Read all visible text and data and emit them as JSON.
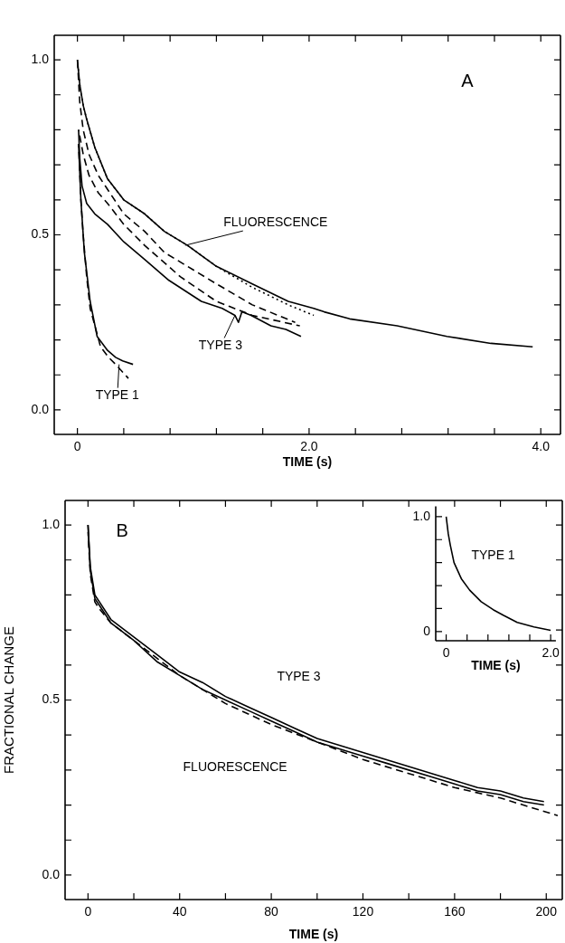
{
  "chart_data": [
    {
      "type": "line",
      "xlabel": "TIME (s)",
      "xlim": [
        -0.2,
        4.17
      ],
      "ylim": [
        -0.07,
        1.07
      ],
      "xticks": [
        {
          "value": 0,
          "label": "0"
        },
        {
          "value": 0.4,
          "label": null
        },
        {
          "value": 0.8,
          "label": null
        },
        {
          "value": 1.2,
          "label": null
        },
        {
          "value": 1.6,
          "label": null
        },
        {
          "value": 2.0,
          "label": "2.0"
        },
        {
          "value": 2.4,
          "label": null
        },
        {
          "value": 2.8,
          "label": null
        },
        {
          "value": 3.2,
          "label": null
        },
        {
          "value": 3.6,
          "label": null
        },
        {
          "value": 4.0,
          "label": "4.0"
        }
      ],
      "yticks": [
        {
          "value": 0,
          "label": "0.0"
        },
        {
          "value": 0.1,
          "label": null
        },
        {
          "value": 0.2,
          "label": null
        },
        {
          "value": 0.3,
          "label": null
        },
        {
          "value": 0.4,
          "label": null
        },
        {
          "value": 0.5,
          "label": "0.5"
        },
        {
          "value": 0.6,
          "label": null
        },
        {
          "value": 0.7,
          "label": null
        },
        {
          "value": 0.8,
          "label": null
        },
        {
          "value": 0.9,
          "label": null
        },
        {
          "value": 1.0,
          "label": "1.0"
        }
      ],
      "grid": false,
      "series": [
        {
          "color": "#000000",
          "line_style": "solid",
          "x": [
            0,
            0.02,
            0.05,
            0.08,
            0.15,
            0.26,
            0.4,
            0.58,
            0.75,
            0.95,
            1.2,
            1.51,
            1.82,
            2.04,
            2.13,
            2.35,
            2.76,
            3.19,
            3.57,
            3.93
          ],
          "values": [
            1.0,
            0.93,
            0.87,
            0.83,
            0.75,
            0.66,
            0.6,
            0.56,
            0.51,
            0.47,
            0.41,
            0.36,
            0.31,
            0.29,
            0.28,
            0.26,
            0.24,
            0.21,
            0.19,
            0.18
          ]
        },
        {
          "color": "#000000",
          "line_style": "dotted",
          "x": [
            0,
            0.02,
            0.05,
            0.08,
            0.15,
            0.26,
            0.4,
            0.58,
            0.75,
            0.95,
            1.2,
            1.51,
            1.82,
            2.04
          ],
          "values": [
            1.0,
            0.93,
            0.87,
            0.83,
            0.75,
            0.66,
            0.6,
            0.56,
            0.51,
            0.47,
            0.41,
            0.35,
            0.3,
            0.27
          ]
        },
        {
          "color": "#000000",
          "line_style": "dashed",
          "x": [
            0,
            0.02,
            0.05,
            0.1,
            0.18,
            0.26,
            0.4,
            0.58,
            0.75,
            0.95,
            1.2,
            1.51,
            1.88
          ],
          "values": [
            1.0,
            0.88,
            0.8,
            0.73,
            0.67,
            0.63,
            0.56,
            0.51,
            0.45,
            0.41,
            0.36,
            0.3,
            0.25
          ]
        },
        {
          "color": "#000000",
          "line_style": "solid",
          "x": [
            0.01,
            0.02,
            0.04,
            0.08,
            0.15,
            0.26,
            0.4,
            0.58,
            0.79,
            1.07,
            1.25,
            1.36,
            1.39,
            1.42,
            1.5,
            1.67,
            1.8,
            1.93
          ],
          "values": [
            0.8,
            0.72,
            0.64,
            0.59,
            0.56,
            0.53,
            0.48,
            0.43,
            0.37,
            0.31,
            0.29,
            0.27,
            0.25,
            0.28,
            0.27,
            0.24,
            0.23,
            0.21
          ]
        },
        {
          "color": "#000000",
          "line_style": "dashed",
          "x": [
            0.01,
            0.05,
            0.1,
            0.18,
            0.26,
            0.4,
            0.58,
            0.89,
            1.2,
            1.51,
            1.92
          ],
          "values": [
            0.8,
            0.73,
            0.67,
            0.62,
            0.59,
            0.53,
            0.47,
            0.38,
            0.31,
            0.27,
            0.24
          ]
        },
        {
          "color": "#000000",
          "line_style": "solid",
          "x": [
            0.01,
            0.03,
            0.06,
            0.11,
            0.17,
            0.26,
            0.33,
            0.39,
            0.48
          ],
          "values": [
            0.76,
            0.6,
            0.45,
            0.31,
            0.21,
            0.17,
            0.15,
            0.14,
            0.13
          ]
        },
        {
          "color": "#000000",
          "line_style": "dashed",
          "x": [
            0.01,
            0.03,
            0.05,
            0.08,
            0.11,
            0.2,
            0.27,
            0.33,
            0.44
          ],
          "values": [
            0.76,
            0.6,
            0.5,
            0.38,
            0.29,
            0.18,
            0.15,
            0.13,
            0.09
          ]
        }
      ],
      "annotations": [
        "A",
        {
          "text": "FLUORESCENCE",
          "x": 0.93,
          "y": 0.47
        },
        {
          "text": "TYPE 3",
          "x": 1.36,
          "y": 0.27
        },
        {
          "text": "TYPE 1",
          "x": 0.36,
          "y": 0.13
        }
      ]
    },
    {
      "type": "line",
      "xlabel": "TIME (s)",
      "ylabel": "FRACTIONAL CHANGE",
      "xlim": [
        -10,
        207
      ],
      "ylim": [
        -0.07,
        1.07
      ],
      "xticks": [
        {
          "value": 0,
          "label": "0"
        },
        {
          "value": 20,
          "label": null
        },
        {
          "value": 40,
          "label": "40"
        },
        {
          "value": 60,
          "label": null
        },
        {
          "value": 80,
          "label": "80"
        },
        {
          "value": 100,
          "label": null
        },
        {
          "value": 120,
          "label": "120"
        },
        {
          "value": 140,
          "label": null
        },
        {
          "value": 160,
          "label": "160"
        },
        {
          "value": 180,
          "label": null
        },
        {
          "value": 200,
          "label": "200"
        }
      ],
      "yticks": [
        {
          "value": 0,
          "label": "0.0"
        },
        {
          "value": 0.1,
          "label": null
        },
        {
          "value": 0.2,
          "label": null
        },
        {
          "value": 0.3,
          "label": null
        },
        {
          "value": 0.4,
          "label": null
        },
        {
          "value": 0.5,
          "label": "0.5"
        },
        {
          "value": 0.6,
          "label": null
        },
        {
          "value": 0.7,
          "label": null
        },
        {
          "value": 0.8,
          "label": null
        },
        {
          "value": 0.9,
          "label": null
        },
        {
          "value": 1.0,
          "label": "1.0"
        }
      ],
      "grid": false,
      "series": [
        {
          "color": "#000000",
          "line_style": "solid",
          "x": [
            0,
            1,
            3,
            5,
            10,
            20,
            30,
            40,
            50,
            60,
            70,
            80,
            90,
            100,
            110,
            120,
            130,
            140,
            150,
            160,
            170,
            180,
            190,
            199
          ],
          "values": [
            1.0,
            0.88,
            0.8,
            0.78,
            0.73,
            0.68,
            0.63,
            0.58,
            0.55,
            0.51,
            0.48,
            0.45,
            0.42,
            0.39,
            0.37,
            0.35,
            0.33,
            0.31,
            0.29,
            0.27,
            0.25,
            0.24,
            0.22,
            0.21
          ]
        },
        {
          "color": "#000000",
          "line_style": "solid",
          "x": [
            0,
            1,
            3,
            5,
            10,
            20,
            30,
            40,
            50,
            60,
            70,
            80,
            90,
            100,
            110,
            120,
            130,
            140,
            150,
            160,
            170,
            180,
            190,
            199
          ],
          "values": [
            1.0,
            0.87,
            0.79,
            0.77,
            0.72,
            0.67,
            0.61,
            0.57,
            0.53,
            0.5,
            0.47,
            0.44,
            0.41,
            0.38,
            0.36,
            0.34,
            0.32,
            0.3,
            0.28,
            0.26,
            0.24,
            0.23,
            0.21,
            0.2
          ]
        },
        {
          "color": "#000000",
          "line_style": "dashed",
          "x": [
            0,
            1,
            3,
            5,
            10,
            20,
            40,
            60,
            80,
            100,
            120,
            140,
            160,
            180,
            205
          ],
          "values": [
            0.98,
            0.86,
            0.78,
            0.76,
            0.72,
            0.67,
            0.57,
            0.49,
            0.43,
            0.38,
            0.33,
            0.29,
            0.25,
            0.22,
            0.17
          ]
        }
      ],
      "annotations": [
        "B",
        "TYPE 3",
        "FLUORESCENCE"
      ]
    },
    {
      "type": "line",
      "xlabel": "TIME (s)",
      "xlim": [
        -0.2,
        2.1
      ],
      "ylim": [
        -0.08,
        1.09
      ],
      "xticks": [
        {
          "value": 0,
          "label": "0"
        },
        {
          "value": 0.4,
          "label": null
        },
        {
          "value": 0.8,
          "label": null
        },
        {
          "value": 1.2,
          "label": null
        },
        {
          "value": 1.6,
          "label": null
        },
        {
          "value": 2.0,
          "label": "2.0"
        }
      ],
      "yticks": [
        {
          "value": 0,
          "label": "0"
        },
        {
          "value": 0.2,
          "label": null
        },
        {
          "value": 0.4,
          "label": null
        },
        {
          "value": 0.6,
          "label": null
        },
        {
          "value": 0.8,
          "label": null
        },
        {
          "value": 1.0,
          "label": "1.0"
        }
      ],
      "grid": false,
      "series": [
        {
          "color": "#000000",
          "line_style": "solid",
          "x": [
            0,
            0.04,
            0.08,
            0.15,
            0.29,
            0.45,
            0.67,
            0.9,
            1.1,
            1.36,
            1.68,
            2.0
          ],
          "values": [
            1.0,
            0.85,
            0.75,
            0.6,
            0.46,
            0.36,
            0.26,
            0.19,
            0.14,
            0.08,
            0.04,
            0.01
          ]
        }
      ],
      "annotations": [
        "TYPE 1"
      ]
    }
  ]
}
